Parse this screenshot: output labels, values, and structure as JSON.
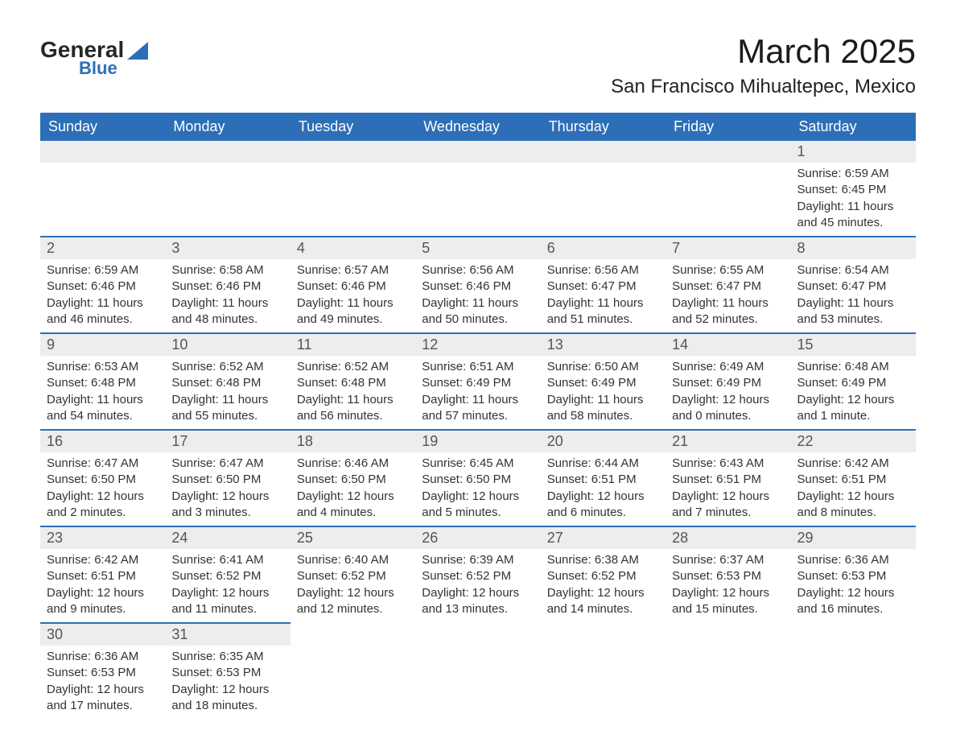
{
  "logo": {
    "brand": "General",
    "sub": "Blue"
  },
  "title": "March 2025",
  "location": "San Francisco Mihualtepec, Mexico",
  "day_headers": [
    "Sunday",
    "Monday",
    "Tuesday",
    "Wednesday",
    "Thursday",
    "Friday",
    "Saturday"
  ],
  "colors": {
    "header_bg": "#2c6fb8",
    "header_fg": "#ffffff",
    "daynum_bg": "#ededed",
    "row_divider": "#2c6fb8"
  },
  "weeks": [
    [
      null,
      null,
      null,
      null,
      null,
      null,
      {
        "n": "1",
        "sunrise": "Sunrise: 6:59 AM",
        "sunset": "Sunset: 6:45 PM",
        "dl1": "Daylight: 11 hours",
        "dl2": "and 45 minutes."
      }
    ],
    [
      {
        "n": "2",
        "sunrise": "Sunrise: 6:59 AM",
        "sunset": "Sunset: 6:46 PM",
        "dl1": "Daylight: 11 hours",
        "dl2": "and 46 minutes."
      },
      {
        "n": "3",
        "sunrise": "Sunrise: 6:58 AM",
        "sunset": "Sunset: 6:46 PM",
        "dl1": "Daylight: 11 hours",
        "dl2": "and 48 minutes."
      },
      {
        "n": "4",
        "sunrise": "Sunrise: 6:57 AM",
        "sunset": "Sunset: 6:46 PM",
        "dl1": "Daylight: 11 hours",
        "dl2": "and 49 minutes."
      },
      {
        "n": "5",
        "sunrise": "Sunrise: 6:56 AM",
        "sunset": "Sunset: 6:46 PM",
        "dl1": "Daylight: 11 hours",
        "dl2": "and 50 minutes."
      },
      {
        "n": "6",
        "sunrise": "Sunrise: 6:56 AM",
        "sunset": "Sunset: 6:47 PM",
        "dl1": "Daylight: 11 hours",
        "dl2": "and 51 minutes."
      },
      {
        "n": "7",
        "sunrise": "Sunrise: 6:55 AM",
        "sunset": "Sunset: 6:47 PM",
        "dl1": "Daylight: 11 hours",
        "dl2": "and 52 minutes."
      },
      {
        "n": "8",
        "sunrise": "Sunrise: 6:54 AM",
        "sunset": "Sunset: 6:47 PM",
        "dl1": "Daylight: 11 hours",
        "dl2": "and 53 minutes."
      }
    ],
    [
      {
        "n": "9",
        "sunrise": "Sunrise: 6:53 AM",
        "sunset": "Sunset: 6:48 PM",
        "dl1": "Daylight: 11 hours",
        "dl2": "and 54 minutes."
      },
      {
        "n": "10",
        "sunrise": "Sunrise: 6:52 AM",
        "sunset": "Sunset: 6:48 PM",
        "dl1": "Daylight: 11 hours",
        "dl2": "and 55 minutes."
      },
      {
        "n": "11",
        "sunrise": "Sunrise: 6:52 AM",
        "sunset": "Sunset: 6:48 PM",
        "dl1": "Daylight: 11 hours",
        "dl2": "and 56 minutes."
      },
      {
        "n": "12",
        "sunrise": "Sunrise: 6:51 AM",
        "sunset": "Sunset: 6:49 PM",
        "dl1": "Daylight: 11 hours",
        "dl2": "and 57 minutes."
      },
      {
        "n": "13",
        "sunrise": "Sunrise: 6:50 AM",
        "sunset": "Sunset: 6:49 PM",
        "dl1": "Daylight: 11 hours",
        "dl2": "and 58 minutes."
      },
      {
        "n": "14",
        "sunrise": "Sunrise: 6:49 AM",
        "sunset": "Sunset: 6:49 PM",
        "dl1": "Daylight: 12 hours",
        "dl2": "and 0 minutes."
      },
      {
        "n": "15",
        "sunrise": "Sunrise: 6:48 AM",
        "sunset": "Sunset: 6:49 PM",
        "dl1": "Daylight: 12 hours",
        "dl2": "and 1 minute."
      }
    ],
    [
      {
        "n": "16",
        "sunrise": "Sunrise: 6:47 AM",
        "sunset": "Sunset: 6:50 PM",
        "dl1": "Daylight: 12 hours",
        "dl2": "and 2 minutes."
      },
      {
        "n": "17",
        "sunrise": "Sunrise: 6:47 AM",
        "sunset": "Sunset: 6:50 PM",
        "dl1": "Daylight: 12 hours",
        "dl2": "and 3 minutes."
      },
      {
        "n": "18",
        "sunrise": "Sunrise: 6:46 AM",
        "sunset": "Sunset: 6:50 PM",
        "dl1": "Daylight: 12 hours",
        "dl2": "and 4 minutes."
      },
      {
        "n": "19",
        "sunrise": "Sunrise: 6:45 AM",
        "sunset": "Sunset: 6:50 PM",
        "dl1": "Daylight: 12 hours",
        "dl2": "and 5 minutes."
      },
      {
        "n": "20",
        "sunrise": "Sunrise: 6:44 AM",
        "sunset": "Sunset: 6:51 PM",
        "dl1": "Daylight: 12 hours",
        "dl2": "and 6 minutes."
      },
      {
        "n": "21",
        "sunrise": "Sunrise: 6:43 AM",
        "sunset": "Sunset: 6:51 PM",
        "dl1": "Daylight: 12 hours",
        "dl2": "and 7 minutes."
      },
      {
        "n": "22",
        "sunrise": "Sunrise: 6:42 AM",
        "sunset": "Sunset: 6:51 PM",
        "dl1": "Daylight: 12 hours",
        "dl2": "and 8 minutes."
      }
    ],
    [
      {
        "n": "23",
        "sunrise": "Sunrise: 6:42 AM",
        "sunset": "Sunset: 6:51 PM",
        "dl1": "Daylight: 12 hours",
        "dl2": "and 9 minutes."
      },
      {
        "n": "24",
        "sunrise": "Sunrise: 6:41 AM",
        "sunset": "Sunset: 6:52 PM",
        "dl1": "Daylight: 12 hours",
        "dl2": "and 11 minutes."
      },
      {
        "n": "25",
        "sunrise": "Sunrise: 6:40 AM",
        "sunset": "Sunset: 6:52 PM",
        "dl1": "Daylight: 12 hours",
        "dl2": "and 12 minutes."
      },
      {
        "n": "26",
        "sunrise": "Sunrise: 6:39 AM",
        "sunset": "Sunset: 6:52 PM",
        "dl1": "Daylight: 12 hours",
        "dl2": "and 13 minutes."
      },
      {
        "n": "27",
        "sunrise": "Sunrise: 6:38 AM",
        "sunset": "Sunset: 6:52 PM",
        "dl1": "Daylight: 12 hours",
        "dl2": "and 14 minutes."
      },
      {
        "n": "28",
        "sunrise": "Sunrise: 6:37 AM",
        "sunset": "Sunset: 6:53 PM",
        "dl1": "Daylight: 12 hours",
        "dl2": "and 15 minutes."
      },
      {
        "n": "29",
        "sunrise": "Sunrise: 6:36 AM",
        "sunset": "Sunset: 6:53 PM",
        "dl1": "Daylight: 12 hours",
        "dl2": "and 16 minutes."
      }
    ],
    [
      {
        "n": "30",
        "sunrise": "Sunrise: 6:36 AM",
        "sunset": "Sunset: 6:53 PM",
        "dl1": "Daylight: 12 hours",
        "dl2": "and 17 minutes."
      },
      {
        "n": "31",
        "sunrise": "Sunrise: 6:35 AM",
        "sunset": "Sunset: 6:53 PM",
        "dl1": "Daylight: 12 hours",
        "dl2": "and 18 minutes."
      },
      null,
      null,
      null,
      null,
      null
    ]
  ]
}
